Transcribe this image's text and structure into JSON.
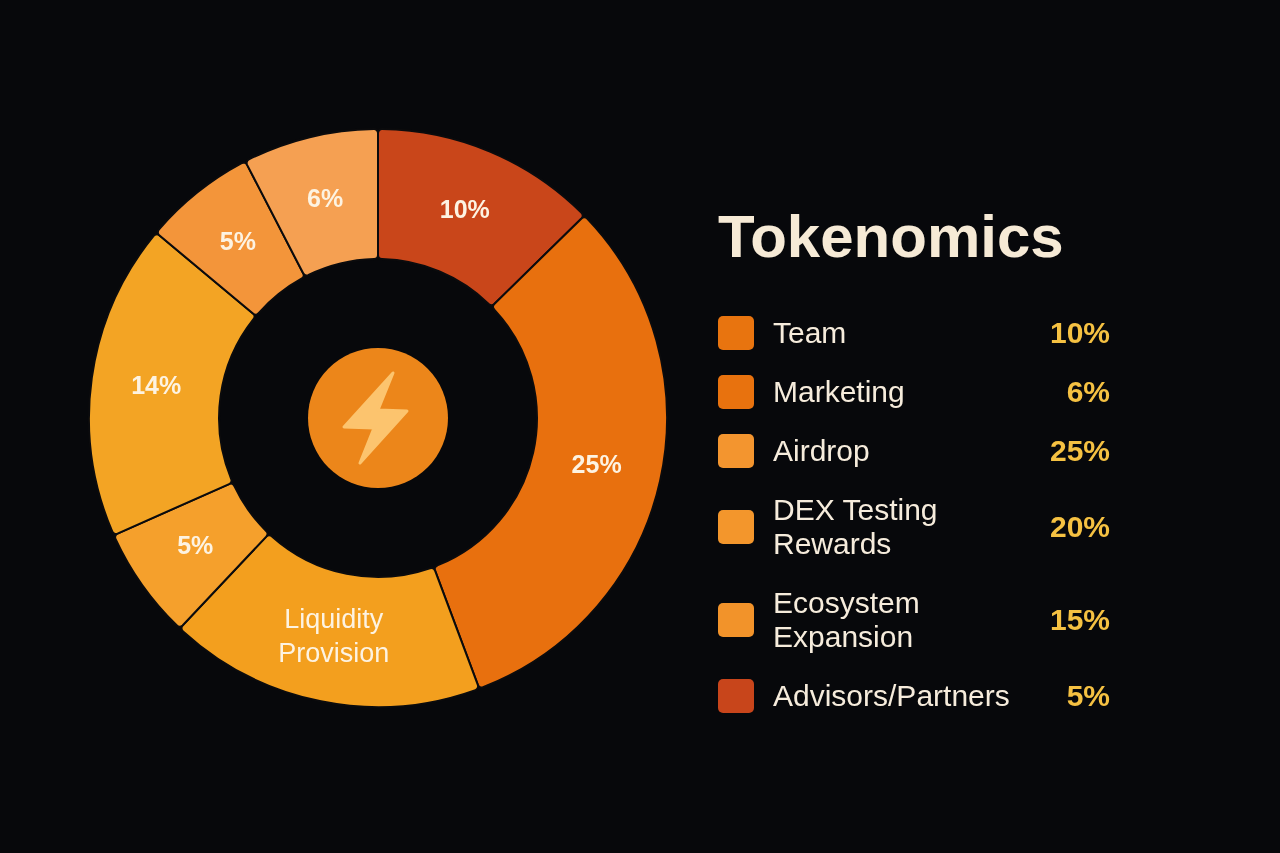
{
  "chart_data": [
    {
      "type": "donut",
      "categories": [
        null,
        null,
        "Liquidity Provision",
        null,
        null,
        null,
        null
      ],
      "values": [
        10,
        25,
        14,
        5,
        14,
        5,
        6
      ],
      "colors": [
        "#c9461a",
        "#e8700e",
        "#f39f1e",
        "#f5a02c",
        "#f3a424",
        "#f3953a",
        "#f5a052"
      ],
      "value_labels": [
        "10%",
        "25%",
        null,
        "5%",
        "14%",
        "5%",
        "6%"
      ]
    },
    {
      "type": "other",
      "title": "Tokenomics",
      "categories": [
        "Team",
        "Marketing",
        "Airdrop",
        "DEX Testing Rewards",
        "Ecosystem Expansion",
        "Advisors/Partners"
      ],
      "colors": [
        "#e8740f",
        "#e8720e",
        "#f3952f",
        "#f3962c",
        "#f2932a",
        "#c8451b"
      ],
      "value_labels": [
        "10%",
        "6%",
        "25%",
        "20%",
        "15%",
        "5%"
      ]
    }
  ]
}
